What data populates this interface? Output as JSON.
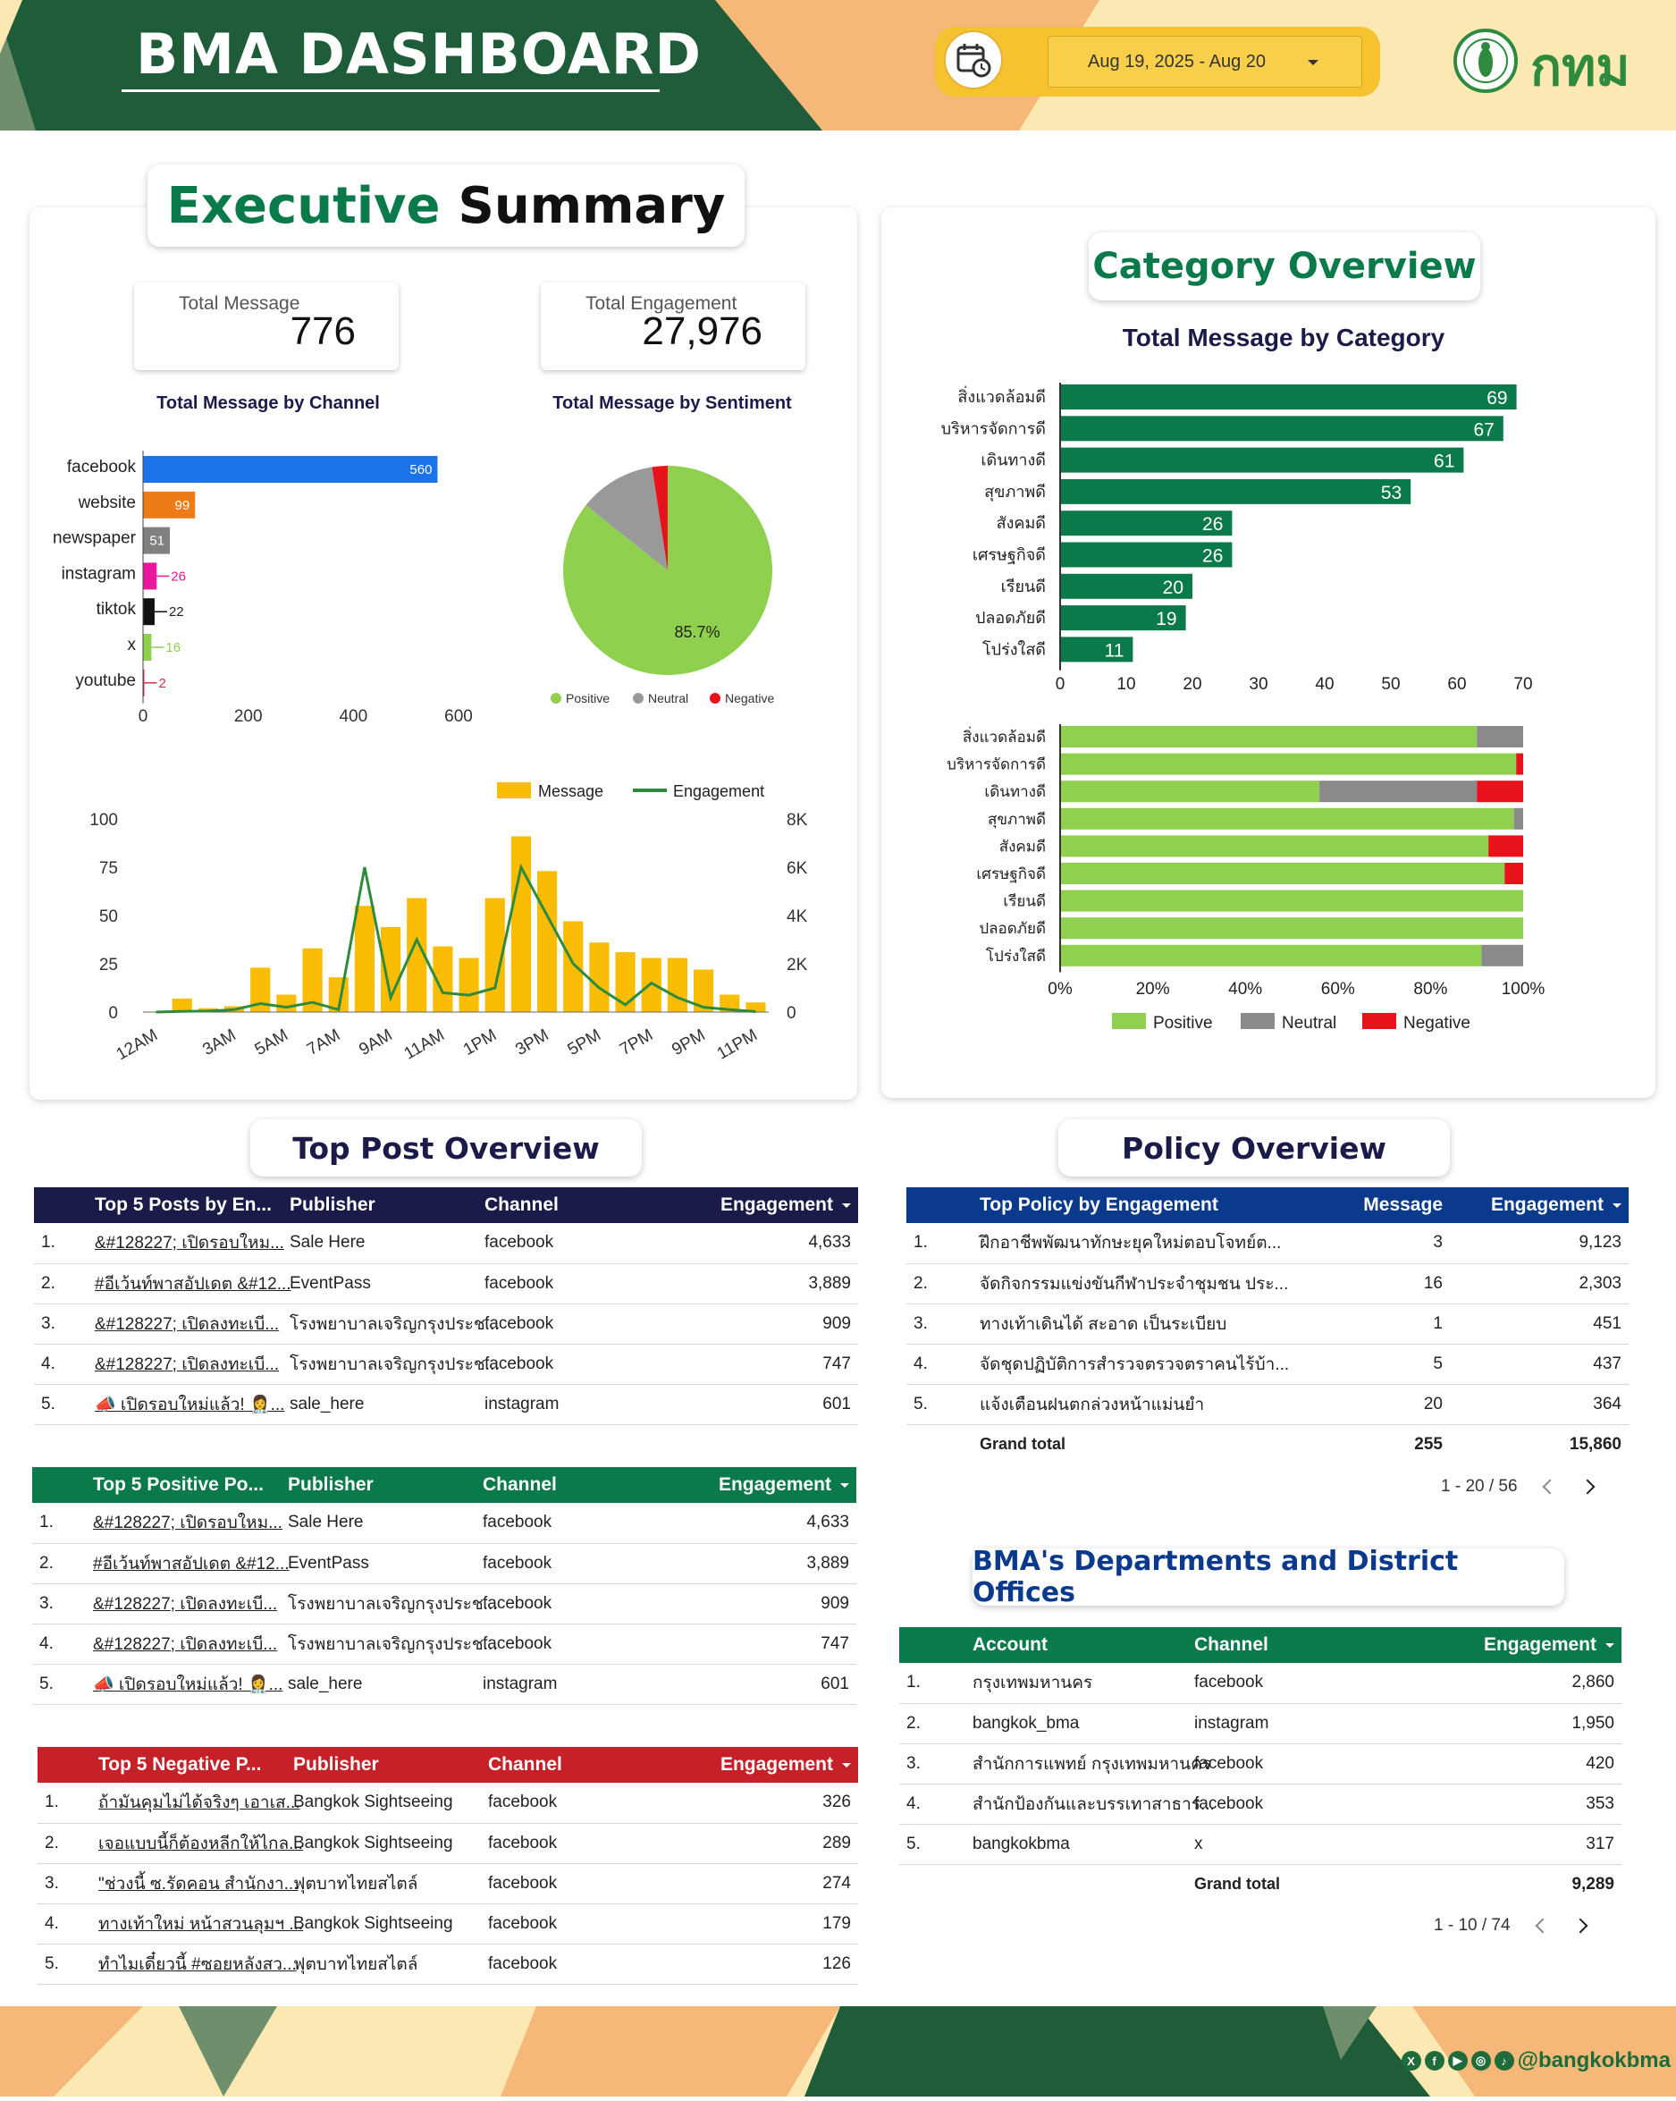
{
  "header": {
    "title": "BMA DASHBOARD",
    "date_range": "Aug 19, 2025 - Aug 20",
    "logo_text": "กทม"
  },
  "exec": {
    "title_a": "Executive",
    "title_b": "Summary",
    "kpi_msg_label": "Total Message",
    "kpi_msg_value": "776",
    "kpi_eng_label": "Total Engagement",
    "kpi_eng_value": "27,976",
    "channel_title": "Total Message by Channel",
    "sentiment_title": "Total Message by Sentiment"
  },
  "category": {
    "title": "Category Overview",
    "chart_title": "Total Message by Category"
  },
  "chart_data": [
    {
      "type": "bar",
      "title": "Total Message by Channel",
      "orientation": "horizontal",
      "categories": [
        "facebook",
        "website",
        "newspaper",
        "instagram",
        "tiktok",
        "x",
        "youtube"
      ],
      "values": [
        560,
        99,
        51,
        26,
        22,
        16,
        2
      ],
      "colors": [
        "#1a73e8",
        "#ef7b17",
        "#808080",
        "#e8179c",
        "#111111",
        "#8fd14f",
        "#d6304b"
      ],
      "xlim": [
        0,
        600
      ],
      "xticks": [
        0,
        200,
        400,
        600
      ]
    },
    {
      "type": "pie",
      "title": "Total Message by Sentiment",
      "categories": [
        "Positive",
        "Neutral",
        "Negative"
      ],
      "values": [
        85.7,
        11.9,
        2.4
      ],
      "colors": [
        "#8fd14f",
        "#999999",
        "#e8121b"
      ],
      "label": "85.7%",
      "legend": "bottom"
    },
    {
      "type": "bar",
      "title": "",
      "categories": [
        "12AM",
        "1AM",
        "2AM",
        "3AM",
        "4AM",
        "5AM",
        "6AM",
        "7AM",
        "8AM",
        "9AM",
        "10AM",
        "11AM",
        "12PM",
        "1PM",
        "2PM",
        "3PM",
        "4PM",
        "5PM",
        "6PM",
        "7PM",
        "8PM",
        "9PM",
        "10PM",
        "11PM"
      ],
      "xticks": [
        "12AM",
        "3AM",
        "5AM",
        "7AM",
        "9AM",
        "11AM",
        "1PM",
        "3PM",
        "5PM",
        "7PM",
        "9PM",
        "11PM"
      ],
      "series": [
        {
          "name": "Message",
          "type": "bar",
          "axis": "left",
          "color": "#fbbc04",
          "values": [
            0,
            7,
            2,
            3,
            23,
            9,
            33,
            18,
            55,
            44,
            59,
            34,
            28,
            59,
            91,
            73,
            47,
            36,
            31,
            28,
            28,
            22,
            9,
            5
          ]
        },
        {
          "name": "Engagement",
          "type": "line",
          "axis": "right",
          "color": "#2e8b3e",
          "values": [
            0,
            30,
            40,
            100,
            350,
            200,
            400,
            100,
            6000,
            600,
            3000,
            800,
            700,
            1000,
            6000,
            4000,
            2000,
            1000,
            300,
            1200,
            600,
            200,
            100,
            20
          ]
        }
      ],
      "ylim": [
        0,
        100
      ],
      "yticks": [
        0,
        25,
        50,
        75,
        100
      ],
      "y2lim": [
        0,
        8000
      ],
      "y2ticks": [
        "0",
        "2K",
        "4K",
        "6K",
        "8K"
      ],
      "legend": "top-right"
    },
    {
      "type": "bar",
      "title": "Total Message by Category",
      "orientation": "horizontal",
      "categories": [
        "สิ่งแวดล้อมดี",
        "บริหารจัดการดี",
        "เดินทางดี",
        "สุขภาพดี",
        "สังคมดี",
        "เศรษฐกิจดี",
        "เรียนดี",
        "ปลอดภัยดี",
        "โปร่งใสดี"
      ],
      "values": [
        69,
        67,
        61,
        53,
        26,
        26,
        20,
        19,
        11
      ],
      "color": "#0a7a4a",
      "xlim": [
        0,
        70
      ],
      "xticks": [
        0,
        10,
        20,
        30,
        40,
        50,
        60,
        70
      ]
    },
    {
      "type": "bar",
      "title": "",
      "orientation": "horizontal",
      "stacked": "percent",
      "categories": [
        "สิ่งแวดล้อมดี",
        "บริหารจัดการดี",
        "เดินทางดี",
        "สุขภาพดี",
        "สังคมดี",
        "เศรษฐกิจดี",
        "เรียนดี",
        "ปลอดภัยดี",
        "โปร่งใสดี"
      ],
      "series": [
        {
          "name": "Positive",
          "color": "#8fd14f",
          "values": [
            90,
            98.5,
            56,
            98,
            92.5,
            96,
            100,
            100,
            91
          ]
        },
        {
          "name": "Neutral",
          "color": "#8a8a8a",
          "values": [
            10,
            0,
            34,
            2,
            0,
            0,
            0,
            0,
            9
          ]
        },
        {
          "name": "Negative",
          "color": "#e8121b",
          "values": [
            0,
            1.5,
            10,
            0,
            7.5,
            4,
            0,
            0,
            0
          ]
        }
      ],
      "xticks": [
        "0%",
        "20%",
        "40%",
        "60%",
        "80%",
        "100%"
      ],
      "legend": "bottom"
    }
  ],
  "top_post": {
    "title": "Top Post Overview",
    "engagement": {
      "headers": [
        "Top 5 Posts by En...",
        "Publisher",
        "Channel",
        "Engagement"
      ],
      "rows": [
        {
          "idx": "1.",
          "post": "&#128227; เปิดรอบใหม...",
          "publisher": "Sale Here",
          "channel": "facebook",
          "value": "4,633"
        },
        {
          "idx": "2.",
          "post": "#อีเว้นท์พาสอัปเดต &#12...",
          "publisher": "EventPass",
          "channel": "facebook",
          "value": "3,889"
        },
        {
          "idx": "3.",
          "post": "&#128227; เปิดลงทะเบี...",
          "publisher": "โรงพยาบาลเจริญกรุงประช...",
          "channel": "facebook",
          "value": "909"
        },
        {
          "idx": "4.",
          "post": "&#128227; เปิดลงทะเบี...",
          "publisher": "โรงพยาบาลเจริญกรุงประช...",
          "channel": "facebook",
          "value": "747"
        },
        {
          "idx": "5.",
          "post": "📣 เปิดรอบใหม่แล้ว! 👩‍⚕️...",
          "publisher": "sale_here",
          "channel": "instagram",
          "value": "601"
        }
      ]
    },
    "positive": {
      "headers": [
        "Top 5 Positive Po...",
        "Publisher",
        "Channel",
        "Engagement"
      ],
      "rows": [
        {
          "idx": "1.",
          "post": "&#128227; เปิดรอบใหม...",
          "publisher": "Sale Here",
          "channel": "facebook",
          "value": "4,633"
        },
        {
          "idx": "2.",
          "post": "#อีเว้นท์พาสอัปเดต &#12...",
          "publisher": "EventPass",
          "channel": "facebook",
          "value": "3,889"
        },
        {
          "idx": "3.",
          "post": "&#128227; เปิดลงทะเบี...",
          "publisher": "โรงพยาบาลเจริญกรุงประช...",
          "channel": "facebook",
          "value": "909"
        },
        {
          "idx": "4.",
          "post": "&#128227; เปิดลงทะเบี...",
          "publisher": "โรงพยาบาลเจริญกรุงประช...",
          "channel": "facebook",
          "value": "747"
        },
        {
          "idx": "5.",
          "post": "📣 เปิดรอบใหม่แล้ว! 👩‍⚕️...",
          "publisher": "sale_here",
          "channel": "instagram",
          "value": "601"
        }
      ]
    },
    "negative": {
      "headers": [
        "Top 5 Negative P...",
        "Publisher",
        "Channel",
        "Engagement"
      ],
      "rows": [
        {
          "idx": "1.",
          "post": "ถ้ามันคุมไม่ได้จริงๆ เอาเส...",
          "publisher": "Bangkok Sightseeing",
          "channel": "facebook",
          "value": "326"
        },
        {
          "idx": "2.",
          "post": "เจอแบบนี้ก็ต้องหลีกให้ไกล...",
          "publisher": "Bangkok Sightseeing",
          "channel": "facebook",
          "value": "289"
        },
        {
          "idx": "3.",
          "post": "\"ช่วงนี้ ซ.รัดคอน สำนักงา...",
          "publisher": "ฟุตบาทไทยสไตล์",
          "channel": "facebook",
          "value": "274"
        },
        {
          "idx": "4.",
          "post": "ทางเท้าใหม่ หน้าสวนลุมฯ ...",
          "publisher": "Bangkok Sightseeing",
          "channel": "facebook",
          "value": "179"
        },
        {
          "idx": "5.",
          "post": "ทำไมเดี๋ยวนี้ #ซอยหลังสว...",
          "publisher": "ฟุตบาทไทยสไตล์",
          "channel": "facebook",
          "value": "126"
        }
      ]
    }
  },
  "policy": {
    "title": "Policy Overview",
    "headers": [
      "Top Policy by Engagement",
      "Message",
      "Engagement"
    ],
    "rows": [
      {
        "idx": "1.",
        "policy": "ฝึกอาชีพพัฒนาทักษะยุคใหม่ตอบโจทย์ต...",
        "message": "3",
        "value": "9,123"
      },
      {
        "idx": "2.",
        "policy": "จัดกิจกรรมแข่งขันกีฬาประจำชุมชน ประ...",
        "message": "16",
        "value": "2,303"
      },
      {
        "idx": "3.",
        "policy": "ทางเท้าเดินได้ สะอาด เป็นระเบียบ",
        "message": "1",
        "value": "451"
      },
      {
        "idx": "4.",
        "policy": "จัดชุดปฏิบัติการสำรวจตรวจตราคนไร้บ้า...",
        "message": "5",
        "value": "437"
      },
      {
        "idx": "5.",
        "policy": "แจ้งเตือนฝนตกล่วงหน้าแม่นยำ",
        "message": "20",
        "value": "364"
      }
    ],
    "total_label": "Grand total",
    "total_message": "255",
    "total_value": "15,860",
    "pager": "1 - 20 / 56"
  },
  "dept": {
    "title": "BMA's Departments and District Offices",
    "headers": [
      "Account",
      "Channel",
      "Engagement"
    ],
    "rows": [
      {
        "idx": "1.",
        "account": "กรุงเทพมหานคร",
        "channel": "facebook",
        "value": "2,860"
      },
      {
        "idx": "2.",
        "account": "bangkok_bma",
        "channel": "instagram",
        "value": "1,950"
      },
      {
        "idx": "3.",
        "account": "สำนักการแพทย์ กรุงเทพมหานคร",
        "channel": "facebook",
        "value": "420"
      },
      {
        "idx": "4.",
        "account": "สำนักป้องกันและบรรเทาสาธาร...",
        "channel": "facebook",
        "value": "353"
      },
      {
        "idx": "5.",
        "account": "bangkokbma",
        "channel": "x",
        "value": "317"
      }
    ],
    "total_label": "Grand total",
    "total_value": "9,289",
    "pager": "1 - 10 / 74"
  },
  "footer": {
    "handle": "@bangkokbma",
    "social_icons": [
      "x-icon",
      "facebook-icon",
      "youtube-icon",
      "instagram-icon",
      "tiktok-icon"
    ]
  },
  "colors": {
    "dark_green": "#1f5d3a",
    "peach": "#f5b878",
    "cream": "#fbe8b2",
    "navy": "#1b1b4a",
    "green_header": "#0a7a4a",
    "red_header": "#c62128",
    "blue_header": "#0b3a8c"
  }
}
